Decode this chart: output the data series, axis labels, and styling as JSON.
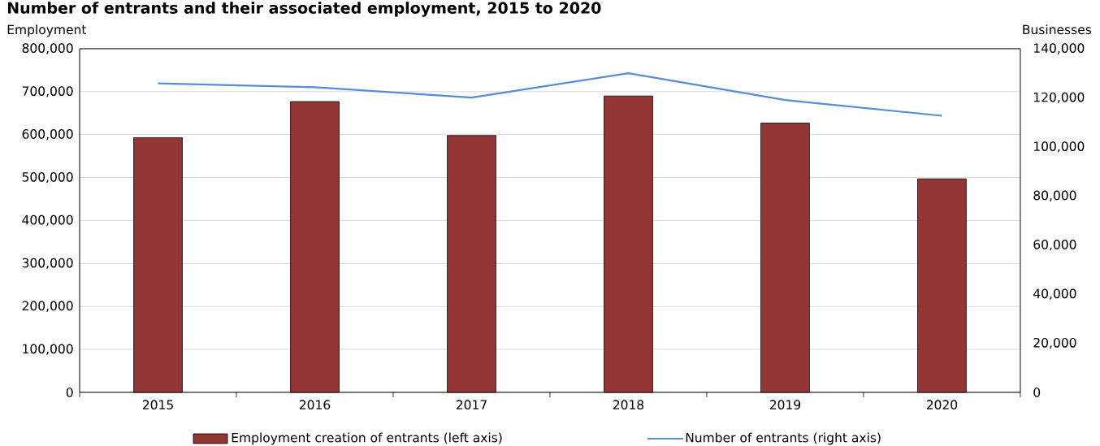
{
  "chart_data": {
    "type": "bar",
    "title": "Number of entrants and their associated employment, 2015 to 2020",
    "ylabel": "Employment",
    "y2label": "Businesses",
    "categories": [
      "2015",
      "2016",
      "2017",
      "2018",
      "2019",
      "2020"
    ],
    "series": [
      {
        "name": "Employment creation of entrants (left axis)",
        "color": "#943634",
        "values": [
          593000,
          677000,
          598000,
          690000,
          627000,
          497000
        ]
      },
      {
        "name": "Number of entrants (right axis)",
        "type": "line",
        "axis": "y2",
        "color": "#558ed5",
        "values": [
          125900,
          124300,
          120100,
          130000,
          119100,
          112700
        ]
      }
    ],
    "ylim": [
      0,
      800000
    ],
    "yticks": [
      {
        "value": 0,
        "label": "0"
      },
      {
        "value": 100000,
        "label": "100,000"
      },
      {
        "value": 200000,
        "label": "200,000"
      },
      {
        "value": 300000,
        "label": "300,000"
      },
      {
        "value": 400000,
        "label": "400,000"
      },
      {
        "value": 500000,
        "label": "500,000"
      },
      {
        "value": 600000,
        "label": "600,000"
      },
      {
        "value": 700000,
        "label": "700,000"
      },
      {
        "value": 800000,
        "label": "800,000"
      }
    ],
    "y2lim": [
      0,
      140000
    ],
    "y2ticks": [
      {
        "value": 0,
        "label": "0"
      },
      {
        "value": 20000,
        "label": "20,000"
      },
      {
        "value": 40000,
        "label": "40,000"
      },
      {
        "value": 60000,
        "label": "60,000"
      },
      {
        "value": 80000,
        "label": "80,000"
      },
      {
        "value": 100000,
        "label": "100,000"
      },
      {
        "value": 120000,
        "label": "120,000"
      },
      {
        "value": 140000,
        "label": "140,000"
      }
    ],
    "grid": "y",
    "legend": "bottom"
  }
}
